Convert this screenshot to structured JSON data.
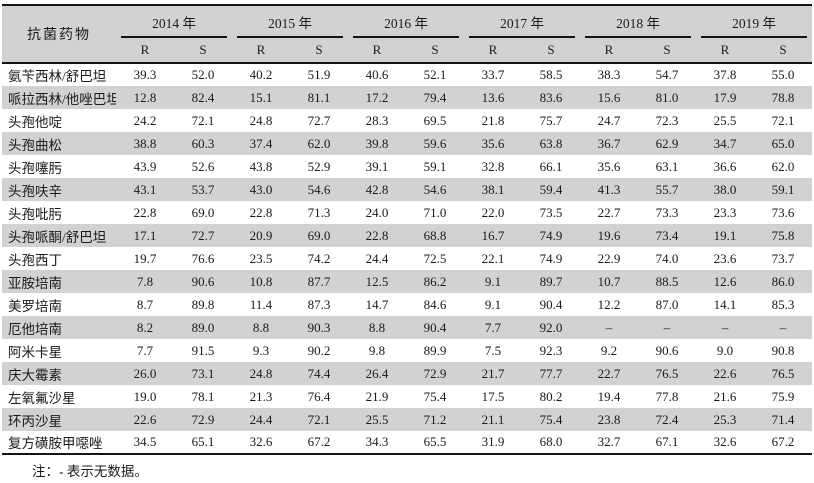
{
  "table": {
    "corner_header": "抗菌药物",
    "years": [
      "2014 年",
      "2015 年",
      "2016 年",
      "2017 年",
      "2018 年",
      "2019 年"
    ],
    "sub_headers": [
      "R",
      "S"
    ],
    "rows": [
      {
        "name": "氨苄西林/舒巴坦",
        "values": [
          "39.3",
          "52.0",
          "40.2",
          "51.9",
          "40.6",
          "52.1",
          "33.7",
          "58.5",
          "38.3",
          "54.7",
          "37.8",
          "55.0"
        ]
      },
      {
        "name": "哌拉西林/他唑巴坦",
        "values": [
          "12.8",
          "82.4",
          "15.1",
          "81.1",
          "17.2",
          "79.4",
          "13.6",
          "83.6",
          "15.6",
          "81.0",
          "17.9",
          "78.8"
        ]
      },
      {
        "name": "头孢他啶",
        "values": [
          "24.2",
          "72.1",
          "24.8",
          "72.7",
          "28.3",
          "69.5",
          "21.8",
          "75.7",
          "24.7",
          "72.3",
          "25.5",
          "72.1"
        ]
      },
      {
        "name": "头孢曲松",
        "values": [
          "38.8",
          "60.3",
          "37.4",
          "62.0",
          "39.8",
          "59.6",
          "35.6",
          "63.8",
          "36.7",
          "62.9",
          "34.7",
          "65.0"
        ]
      },
      {
        "name": "头孢噻肟",
        "values": [
          "43.9",
          "52.6",
          "43.8",
          "52.9",
          "39.1",
          "59.1",
          "32.8",
          "66.1",
          "35.6",
          "63.1",
          "36.6",
          "62.0"
        ]
      },
      {
        "name": "头孢呋辛",
        "values": [
          "43.1",
          "53.7",
          "43.0",
          "54.6",
          "42.8",
          "54.6",
          "38.1",
          "59.4",
          "41.3",
          "55.7",
          "38.0",
          "59.1"
        ]
      },
      {
        "name": "头孢吡肟",
        "values": [
          "22.8",
          "69.0",
          "22.8",
          "71.3",
          "24.0",
          "71.0",
          "22.0",
          "73.5",
          "22.7",
          "73.3",
          "23.3",
          "73.6"
        ]
      },
      {
        "name": "头孢哌酮/舒巴坦",
        "values": [
          "17.1",
          "72.7",
          "20.9",
          "69.0",
          "22.8",
          "68.8",
          "16.7",
          "74.9",
          "19.6",
          "73.4",
          "19.1",
          "75.8"
        ]
      },
      {
        "name": "头孢西丁",
        "values": [
          "19.7",
          "76.6",
          "23.5",
          "74.2",
          "24.4",
          "72.5",
          "22.1",
          "74.9",
          "22.9",
          "74.0",
          "23.6",
          "73.7"
        ]
      },
      {
        "name": "亚胺培南",
        "values": [
          "7.8",
          "90.6",
          "10.8",
          "87.7",
          "12.5",
          "86.2",
          "9.1",
          "89.7",
          "10.7",
          "88.5",
          "12.6",
          "86.0"
        ]
      },
      {
        "name": "美罗培南",
        "values": [
          "8.7",
          "89.8",
          "11.4",
          "87.3",
          "14.7",
          "84.6",
          "9.1",
          "90.4",
          "12.2",
          "87.0",
          "14.1",
          "85.3"
        ]
      },
      {
        "name": "厄他培南",
        "values": [
          "8.2",
          "89.0",
          "8.8",
          "90.3",
          "8.8",
          "90.4",
          "7.7",
          "92.0",
          "–",
          "–",
          "–",
          "–"
        ]
      },
      {
        "name": "阿米卡星",
        "values": [
          "7.7",
          "91.5",
          "9.3",
          "90.2",
          "9.8",
          "89.9",
          "7.5",
          "92.3",
          "9.2",
          "90.6",
          "9.0",
          "90.8"
        ]
      },
      {
        "name": "庆大霉素",
        "values": [
          "26.0",
          "73.1",
          "24.8",
          "74.4",
          "26.4",
          "72.9",
          "21.7",
          "77.7",
          "22.7",
          "76.5",
          "22.6",
          "76.5"
        ]
      },
      {
        "name": "左氧氟沙星",
        "values": [
          "19.0",
          "78.1",
          "21.3",
          "76.4",
          "21.9",
          "75.4",
          "17.5",
          "80.2",
          "19.4",
          "77.8",
          "21.6",
          "75.9"
        ]
      },
      {
        "name": "环丙沙星",
        "values": [
          "22.6",
          "72.9",
          "24.4",
          "72.1",
          "25.5",
          "71.2",
          "21.1",
          "75.4",
          "23.8",
          "72.4",
          "25.3",
          "71.4"
        ]
      },
      {
        "name": "复方磺胺甲噁唑",
        "values": [
          "34.5",
          "65.1",
          "32.6",
          "67.2",
          "34.3",
          "65.5",
          "31.9",
          "68.0",
          "32.7",
          "67.1",
          "32.6",
          "67.2"
        ]
      }
    ],
    "no_data_symbol": "–"
  },
  "note": "注：- 表示无数据。",
  "colors": {
    "row_shade": "#d2d2d2",
    "rule": "#151515",
    "text": "#1a1a1a",
    "background": "#ffffff"
  }
}
